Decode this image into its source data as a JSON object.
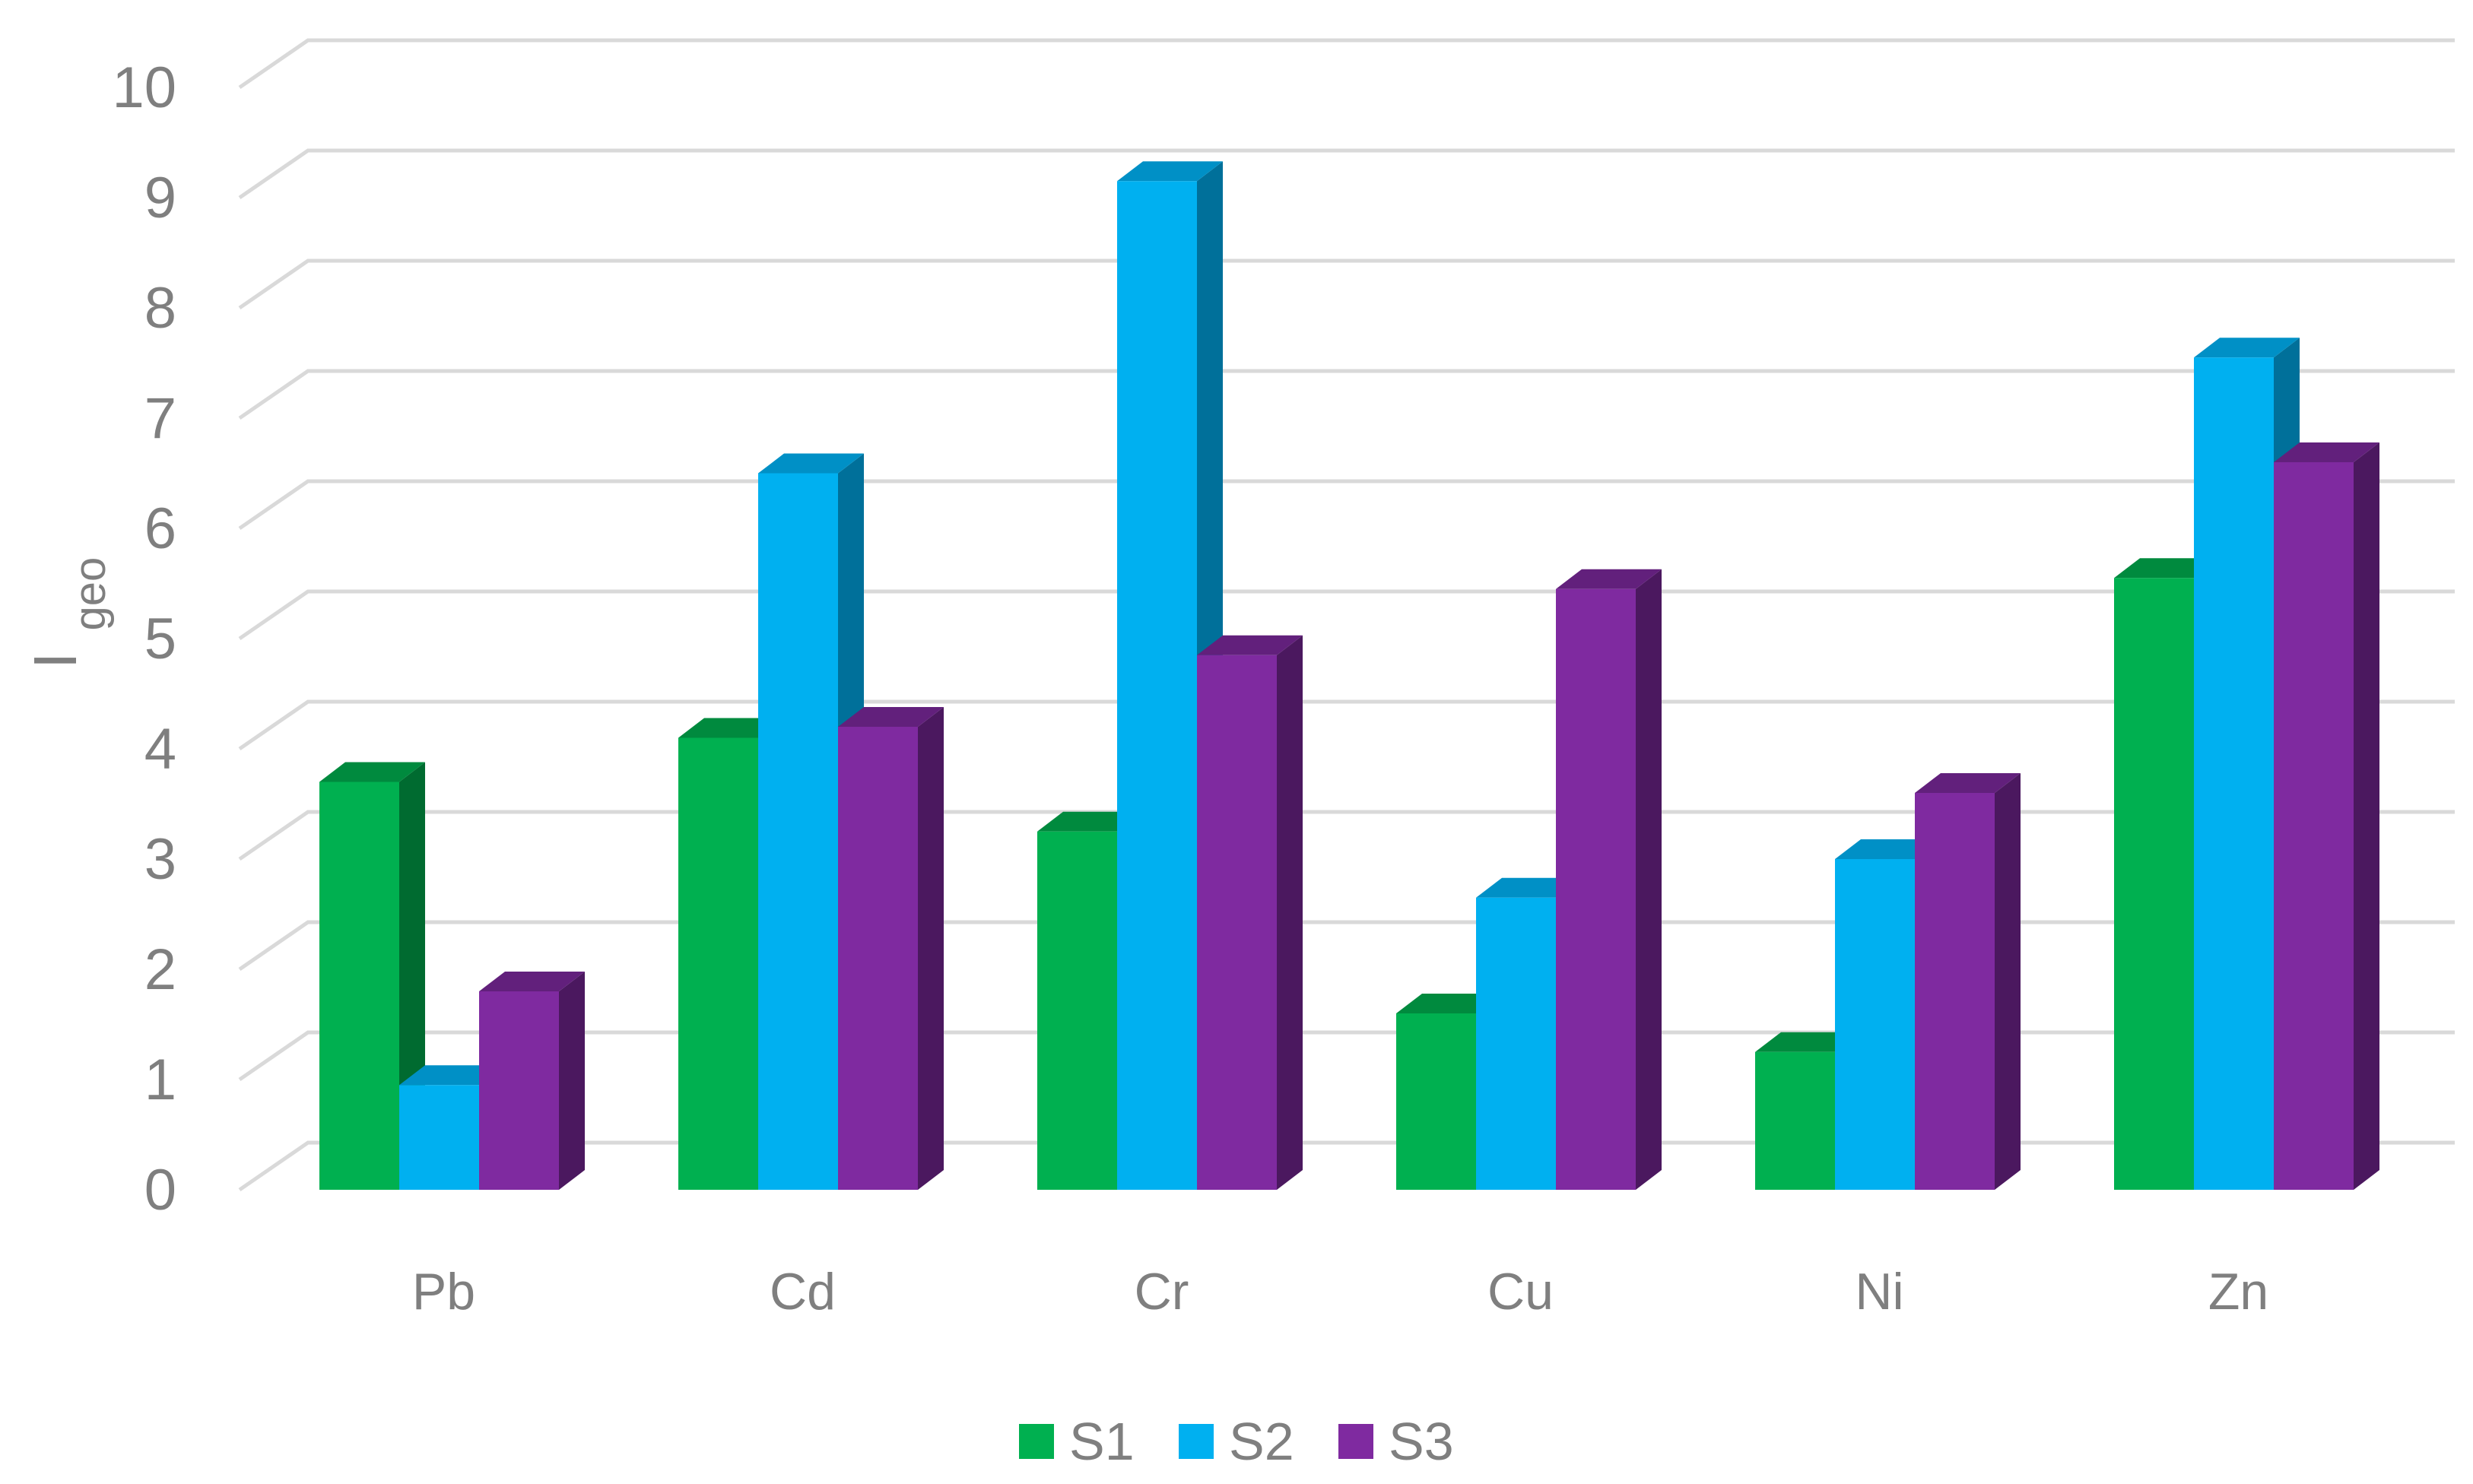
{
  "chart_data": {
    "type": "bar",
    "style": "3d-clustered-column",
    "categories": [
      "Pb",
      "Cd",
      "Cr",
      "Cu",
      "Ni",
      "Zn"
    ],
    "series": [
      {
        "name": "S1",
        "values": [
          3.7,
          4.1,
          3.25,
          1.6,
          1.25,
          5.55
        ],
        "color": "#00b050",
        "top": "#008a3e",
        "side": "#006b30"
      },
      {
        "name": "S2",
        "values": [
          0.95,
          6.5,
          9.15,
          2.65,
          3.0,
          7.55
        ],
        "color": "#00b0f0",
        "top": "#0090c6",
        "side": "#00709a"
      },
      {
        "name": "S3",
        "values": [
          1.8,
          4.2,
          4.85,
          5.45,
          3.6,
          6.6
        ],
        "color": "#7f2aa0",
        "top": "#62207c",
        "side": "#4b185f"
      }
    ],
    "y_ticks": [
      "0",
      "1",
      "2",
      "3",
      "4",
      "5",
      "6",
      "7",
      "8",
      "9",
      "10"
    ],
    "ylabel": {
      "main": "I",
      "sub": "geo"
    },
    "xlabel": "",
    "ylim": [
      0,
      10
    ],
    "grid": true,
    "legend": "bottom"
  }
}
